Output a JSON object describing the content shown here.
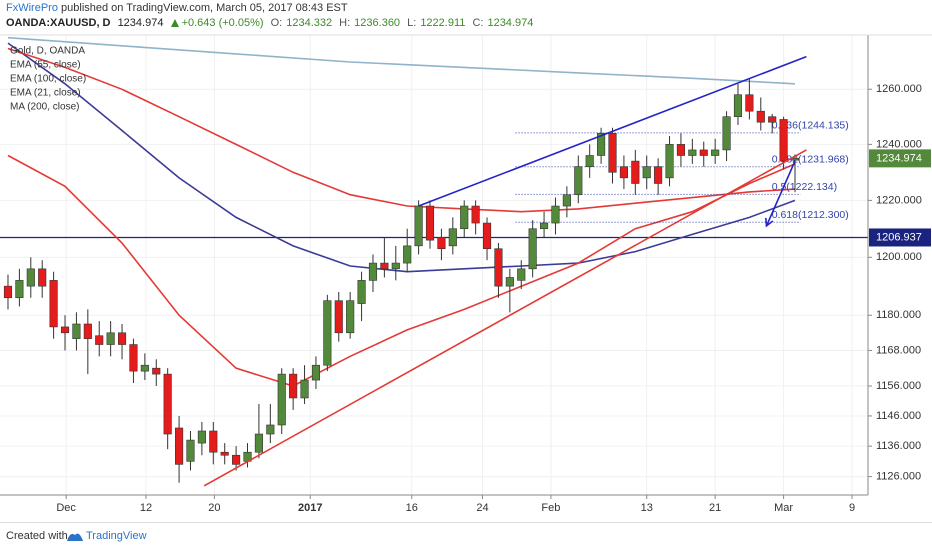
{
  "header": {
    "publisher": "FxWirePro",
    "published": "published on TradingView.com, March 05, 2017 08:43 EST",
    "symbol": "OANDA:XAUUSD, D",
    "last": "1234.974",
    "change": "+0.643 (+0.05%)",
    "ohlc": [
      {
        "label": "O:",
        "value": "1234.332"
      },
      {
        "label": "H:",
        "value": "1236.360"
      },
      {
        "label": "L:",
        "value": "1222.911"
      },
      {
        "label": "C:",
        "value": "1234.974"
      }
    ]
  },
  "footer": {
    "created": "Created with",
    "brand": "TradingView"
  },
  "chart_data": {
    "type": "candlestick",
    "title": "Gold, D, OANDA",
    "log_scale": true,
    "grid": true,
    "up_color": "#53893a",
    "down_color": "#e51c1c",
    "wick_color": "#333333",
    "xlim": [
      -0.7,
      75.4
    ],
    "ylim": [
      1120,
      1280
    ],
    "xticks": [
      {
        "value": 5.1,
        "label": "Dec"
      },
      {
        "value": 12.1,
        "label": "12"
      },
      {
        "value": 18.1,
        "label": "20"
      },
      {
        "value": 26.5,
        "label": "2017"
      },
      {
        "value": 35.4,
        "label": "16"
      },
      {
        "value": 41.6,
        "label": "24"
      },
      {
        "value": 47.6,
        "label": "Feb"
      },
      {
        "value": 56,
        "label": "13"
      },
      {
        "value": 62,
        "label": "21"
      },
      {
        "value": 68,
        "label": "Mar"
      },
      {
        "value": 74,
        "label": "9"
      }
    ],
    "yticks": [
      {
        "value": 1126,
        "label": "1126.000"
      },
      {
        "value": 1136,
        "label": "1136.000"
      },
      {
        "value": 1146,
        "label": "1146.000"
      },
      {
        "value": 1156,
        "label": "1156.000"
      },
      {
        "value": 1168,
        "label": "1168.000"
      },
      {
        "value": 1180,
        "label": "1180.000"
      },
      {
        "value": 1200,
        "label": "1200.000"
      },
      {
        "value": 1220,
        "label": "1220.000"
      },
      {
        "value": 1240,
        "label": "1240.000"
      },
      {
        "value": 1260,
        "label": "1260.000"
      }
    ],
    "open": [
      1190,
      1186,
      1190,
      1196,
      1192,
      1176,
      1172,
      1177,
      1173,
      1170,
      1174,
      1170,
      1161,
      1162,
      1160,
      1142,
      1131,
      1137,
      1141,
      1134,
      1133,
      1131,
      1134,
      1140,
      1143,
      1160,
      1152,
      1158,
      1163,
      1185,
      1174,
      1184,
      1192,
      1198,
      1196,
      1198,
      1204,
      1218,
      1207,
      1204,
      1210,
      1218,
      1212,
      1203,
      1190,
      1192,
      1196,
      1210,
      1212,
      1218,
      1222,
      1232,
      1236,
      1244,
      1232,
      1234,
      1228,
      1232,
      1228,
      1240,
      1236,
      1238,
      1236,
      1238,
      1250,
      1258,
      1252,
      1250,
      1249,
      1234.332
    ],
    "high": [
      1194,
      1196,
      1200,
      1199,
      1195,
      1180,
      1181,
      1182,
      1178,
      1178,
      1177,
      1172,
      1167,
      1165,
      1162,
      1146,
      1141,
      1144,
      1144,
      1137,
      1136,
      1137,
      1150,
      1150,
      1162,
      1162,
      1163,
      1166,
      1187,
      1188,
      1188,
      1195,
      1201,
      1207,
      1204,
      1210,
      1220,
      1220,
      1210,
      1214,
      1220,
      1220,
      1214,
      1205,
      1196,
      1199,
      1213,
      1216,
      1221,
      1225,
      1236,
      1240,
      1246,
      1246,
      1236,
      1238,
      1236,
      1235,
      1243,
      1244,
      1242,
      1241,
      1242,
      1252,
      1262,
      1264,
      1257,
      1251,
      1250,
      1236.36
    ],
    "low": [
      1182,
      1183,
      1186,
      1186,
      1172,
      1168,
      1168,
      1160,
      1166,
      1166,
      1165,
      1157,
      1158,
      1156,
      1135,
      1124,
      1128,
      1133,
      1130,
      1130,
      1128,
      1129,
      1132,
      1137,
      1140,
      1148,
      1150,
      1155,
      1161,
      1171,
      1172,
      1178,
      1188,
      1193,
      1192,
      1195,
      1201,
      1203,
      1199,
      1201,
      1207,
      1208,
      1199,
      1186,
      1181,
      1189,
      1193,
      1207,
      1208,
      1214,
      1219,
      1228,
      1233,
      1226,
      1224,
      1222,
      1224,
      1222,
      1225,
      1232,
      1233,
      1232,
      1233,
      1234,
      1247,
      1249,
      1245,
      1244,
      1231,
      1222.911
    ],
    "close": [
      1186,
      1192,
      1196,
      1190,
      1176,
      1174,
      1177,
      1172,
      1170,
      1174,
      1170,
      1161,
      1163,
      1160,
      1140,
      1130,
      1138,
      1141,
      1134,
      1133,
      1130,
      1134,
      1140,
      1143,
      1160,
      1152,
      1158,
      1163,
      1185,
      1174,
      1185,
      1192,
      1198,
      1196,
      1198,
      1204,
      1218,
      1206,
      1203,
      1210,
      1218,
      1212,
      1203,
      1190,
      1193,
      1196,
      1210,
      1212,
      1218,
      1222,
      1232,
      1236,
      1244,
      1230,
      1228,
      1226,
      1232,
      1226,
      1240,
      1236,
      1238,
      1236,
      1238,
      1250,
      1258,
      1252,
      1248,
      1248,
      1234,
      1234.974
    ],
    "series": [
      {
        "name": "EMA (55, close)",
        "color": "#3b3b98",
        "x": [
          0,
          5,
          10,
          15,
          20,
          25,
          30,
          35,
          40,
          45,
          50,
          55,
          60,
          65,
          69
        ],
        "values": [
          1277,
          1262,
          1245,
          1228,
          1214,
          1204,
          1197,
          1195,
          1196,
          1197,
          1198,
          1202,
          1208,
          1214,
          1220
        ]
      },
      {
        "name": "EMA (100, close)",
        "color": "#e53935",
        "x": [
          0,
          5,
          10,
          15,
          20,
          25,
          30,
          35,
          40,
          45,
          50,
          55,
          60,
          65,
          69
        ],
        "values": [
          1275,
          1268,
          1260,
          1250,
          1240,
          1230,
          1222,
          1218,
          1217,
          1216,
          1217,
          1219,
          1221,
          1223,
          1224
        ]
      },
      {
        "name": "EMA (21, close)",
        "color": "#e53935",
        "x": [
          0,
          5,
          10,
          15,
          20,
          25,
          30,
          35,
          40,
          45,
          50,
          55,
          60,
          65,
          69
        ],
        "values": [
          1236,
          1225,
          1205,
          1180,
          1162,
          1156,
          1166,
          1175,
          1182,
          1190,
          1198,
          1210,
          1216,
          1226,
          1233
        ]
      },
      {
        "name": "MA (200, close)",
        "color": "#8fb3c9",
        "x": [
          0,
          10,
          20,
          30,
          40,
          50,
          60,
          69
        ],
        "values": [
          1279,
          1276,
          1273,
          1270,
          1268,
          1266,
          1264,
          1262
        ]
      }
    ],
    "trendlines": [
      {
        "color": "#2323c8",
        "points": [
          [
            36,
            1218
          ],
          [
            70,
            1272
          ]
        ]
      },
      {
        "color": "#e53935",
        "points": [
          [
            17.2,
            1123
          ],
          [
            70,
            1238
          ]
        ]
      },
      {
        "color": "#2323c8",
        "points": [
          [
            69,
            1234
          ],
          [
            66.5,
            1211
          ]
        ],
        "arrow": true
      }
    ],
    "fib_x": [
      44.5,
      69.5
    ],
    "fib_color": "#3344aa",
    "fib_levels": [
      {
        "value": 1244.135,
        "label": "0.236(1244.135)"
      },
      {
        "value": 1231.968,
        "label": "0.382(1231.968)"
      },
      {
        "value": 1222.134,
        "label": "0.5(1222.134)"
      },
      {
        "value": 1212.3,
        "label": "0.618(1212.300)"
      }
    ],
    "price_marks": [
      {
        "value": 1234.974,
        "color": "#53893a"
      },
      {
        "value": 1206.937,
        "color": "#1a237e",
        "line": true
      }
    ]
  }
}
